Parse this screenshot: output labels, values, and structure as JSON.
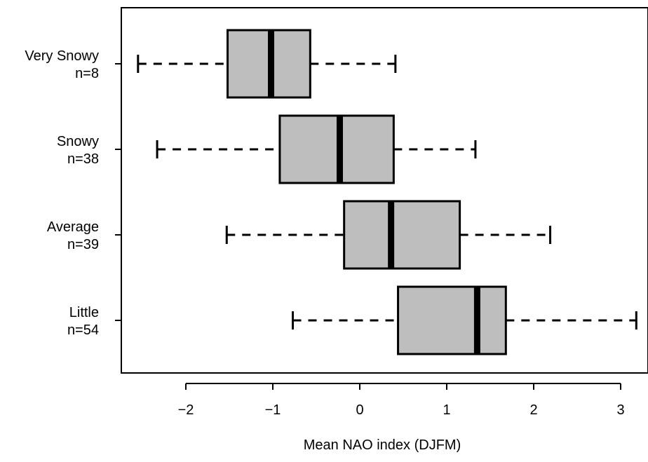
{
  "chart_data": {
    "type": "boxplot",
    "orientation": "horizontal",
    "xlabel": "Mean NAO index (DJFM)",
    "xlim": [
      -2.75,
      3.35
    ],
    "xticks": [
      -2,
      -1,
      0,
      1,
      2,
      3
    ],
    "xtick_labels": [
      "−2",
      "−1",
      "0",
      "1",
      "2",
      "3"
    ],
    "box_color": "#bebebe",
    "line_color": "#000000",
    "categories": [
      {
        "label": "Very Snowy",
        "n_label": "n=8",
        "min": -2.55,
        "q1": -1.52,
        "median": -1.02,
        "q3": -0.57,
        "max": 0.41
      },
      {
        "label": "Snowy",
        "n_label": "n=38",
        "min": -2.33,
        "q1": -0.92,
        "median": -0.23,
        "q3": 0.39,
        "max": 1.33
      },
      {
        "label": "Average",
        "n_label": "n=39",
        "min": -1.53,
        "q1": -0.18,
        "median": 0.36,
        "q3": 1.15,
        "max": 2.19
      },
      {
        "label": "Little",
        "n_label": "n=54",
        "min": -0.77,
        "q1": 0.44,
        "median": 1.35,
        "q3": 1.68,
        "max": 3.18
      }
    ]
  }
}
